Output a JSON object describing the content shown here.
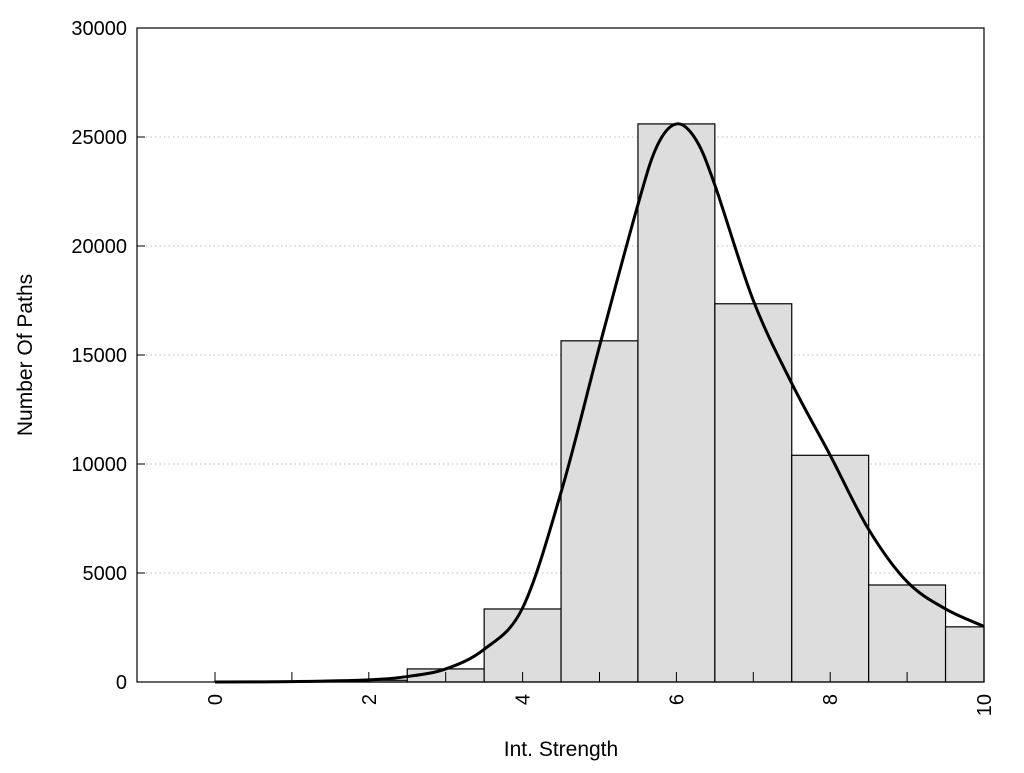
{
  "chart_data": {
    "type": "bar",
    "title": "",
    "xlabel": "Int. Strength",
    "ylabel": "Number Of Paths",
    "xlim": [
      -1,
      10
    ],
    "ylim": [
      0,
      30000
    ],
    "xticks": [
      0,
      2,
      4,
      6,
      8,
      10
    ],
    "yticks": [
      0,
      5000,
      10000,
      15000,
      20000,
      25000,
      30000
    ],
    "grid": "horizontal dotted",
    "bar_color": "#dddddd",
    "curve_color": "#000000",
    "bars": {
      "x": [
        0,
        1,
        2,
        3,
        4,
        5,
        6,
        7,
        8,
        9,
        10
      ],
      "values": [
        5,
        20,
        80,
        600,
        3350,
        15650,
        25600,
        17350,
        10400,
        4450,
        2530
      ]
    },
    "density_curve": {
      "x": [
        0,
        1,
        2,
        2.5,
        3,
        3.5,
        4,
        4.5,
        5,
        5.5,
        5.75,
        6,
        6.25,
        6.5,
        7,
        7.5,
        8,
        8.5,
        9,
        9.5,
        10
      ],
      "values": [
        0,
        20,
        100,
        250,
        600,
        1500,
        3400,
        8700,
        15400,
        21900,
        24600,
        25600,
        24900,
        22800,
        17500,
        13700,
        10400,
        7000,
        4600,
        3350,
        2550
      ]
    }
  }
}
